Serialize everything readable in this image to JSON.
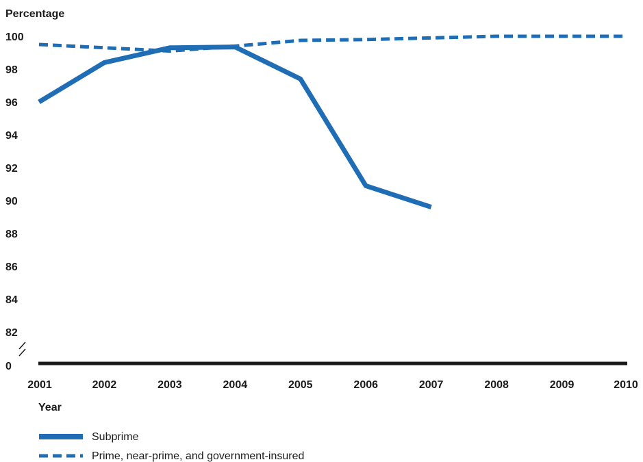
{
  "chart_data": {
    "type": "line",
    "ylabel": "Percentage",
    "xlabel": "Year",
    "x": [
      "2001",
      "2002",
      "2003",
      "2004",
      "2005",
      "2006",
      "2007",
      "2008",
      "2009",
      "2010"
    ],
    "y_ticks": [
      "100",
      "98",
      "96",
      "94",
      "92",
      "90",
      "88",
      "86",
      "84",
      "82",
      "0"
    ],
    "y_axis_break": true,
    "ylim": [
      82,
      100
    ],
    "grid": false,
    "legend_position": "bottom-left",
    "series": [
      {
        "name": "Subprime",
        "style": "solid",
        "color": "#1f6db5",
        "values": [
          96.0,
          98.4,
          99.3,
          99.35,
          97.4,
          90.9,
          89.6,
          null,
          null,
          null
        ]
      },
      {
        "name": "Prime, near-prime, and government-insured",
        "style": "dashed",
        "color": "#1f6db5",
        "values": [
          99.5,
          99.3,
          99.1,
          99.4,
          99.75,
          99.8,
          99.9,
          100.0,
          100.0,
          100.0
        ]
      }
    ]
  }
}
